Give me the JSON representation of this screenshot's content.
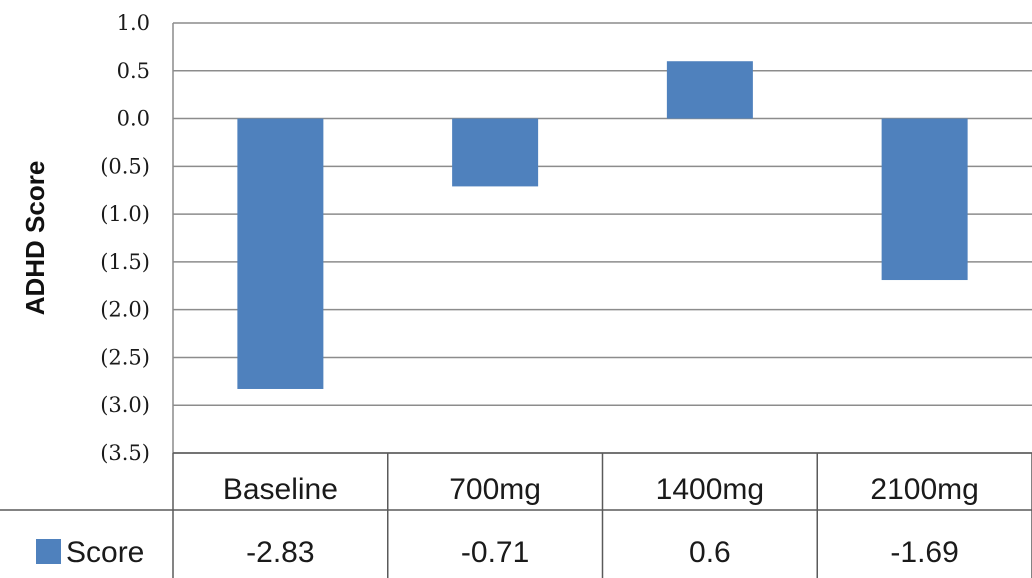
{
  "chart_data": {
    "type": "bar",
    "categories": [
      "Baseline",
      "700mg",
      "1400mg",
      "2100mg"
    ],
    "series": [
      {
        "name": "Score",
        "values": [
          -2.83,
          -0.71,
          0.6,
          -1.69
        ]
      }
    ],
    "data_table_values": [
      "-2.83",
      "-0.71",
      "0.6",
      "-1.69"
    ],
    "ylabel": "ADHD Score",
    "ylim": [
      -3.5,
      1.0
    ],
    "y_ticks": [
      {
        "value": 1.0,
        "label": "1.0"
      },
      {
        "value": 0.5,
        "label": "0.5"
      },
      {
        "value": 0.0,
        "label": "0.0"
      },
      {
        "value": -0.5,
        "label": "(0.5)"
      },
      {
        "value": -1.0,
        "label": "(1.0)"
      },
      {
        "value": -1.5,
        "label": "(1.5)"
      },
      {
        "value": -2.0,
        "label": "(2.0)"
      },
      {
        "value": -2.5,
        "label": "(2.5)"
      },
      {
        "value": -3.0,
        "label": "(3.0)"
      },
      {
        "value": -3.5,
        "label": "(3.5)"
      }
    ],
    "grid": true,
    "legend": "data-table-left",
    "bar_color": "#4f81bd",
    "grid_color": "#8c8c8c"
  }
}
